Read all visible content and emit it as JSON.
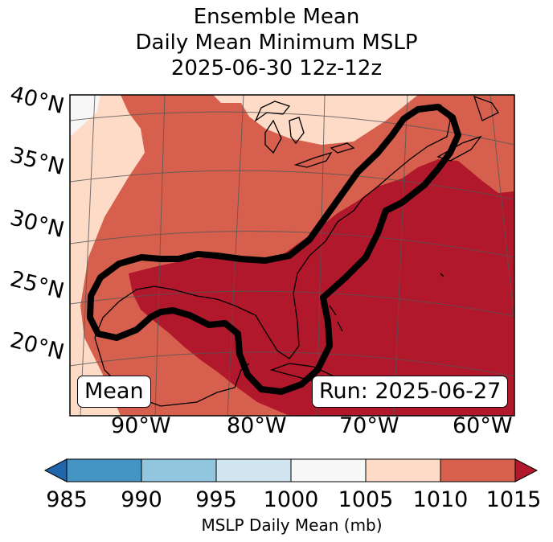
{
  "title": {
    "line1": "Ensemble Mean",
    "line2": "Daily Mean Minimum MSLP",
    "line3": "2025-06-30 12z-12z"
  },
  "map": {
    "lat_labels": [
      "40°N",
      "35°N",
      "30°N",
      "25°N",
      "20°N"
    ],
    "lon_labels": [
      "90°W",
      "80°W",
      "70°W",
      "60°W"
    ],
    "mean_box": "Mean",
    "run_box": "Run: 2025-06-27"
  },
  "colorbar": {
    "ticks": [
      "985",
      "990",
      "995",
      "1000",
      "1005",
      "1010",
      "1015"
    ],
    "label": "MSLP Daily Mean (mb)",
    "colors": {
      "under": "#2166ac",
      "c985_990": "#4393c3",
      "c990_995": "#92c5de",
      "c995_1000": "#d1e5f0",
      "c1000_1005": "#f7f7f7",
      "c1005_1010": "#fddbc7",
      "c1010_1015": "#d6604d",
      "over": "#b2182b"
    }
  }
}
